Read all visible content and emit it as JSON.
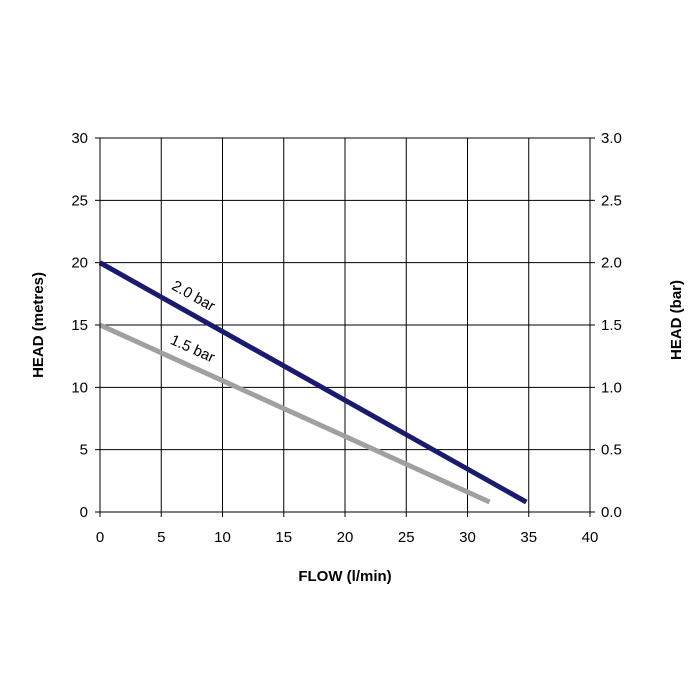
{
  "chart_data": {
    "type": "line",
    "title": "",
    "xlabel": "FLOW (l/min)",
    "ylabel": "HEAD (metres)",
    "y2label": "HEAD (bar)",
    "xlim": [
      0,
      40
    ],
    "ylim": [
      0,
      30
    ],
    "y2lim": [
      0,
      3.0
    ],
    "grid": true,
    "x_ticks": [
      "0",
      "5",
      "10",
      "15",
      "20",
      "25",
      "30",
      "35",
      "40"
    ],
    "y_ticks": [
      "0",
      "5",
      "10",
      "15",
      "20",
      "25",
      "30"
    ],
    "y2_ticks": [
      "0.0",
      "0.5",
      "1.0",
      "1.5",
      "2.0",
      "2.5",
      "3.0"
    ],
    "series": [
      {
        "name": "2.0 bar",
        "color": "#1a1a6e",
        "x": [
          0,
          34.8
        ],
        "y": [
          20,
          0.8
        ]
      },
      {
        "name": "1.5 bar",
        "color": "#a0a0a0",
        "x": [
          0,
          31.8
        ],
        "y": [
          15,
          0.8
        ]
      }
    ]
  }
}
